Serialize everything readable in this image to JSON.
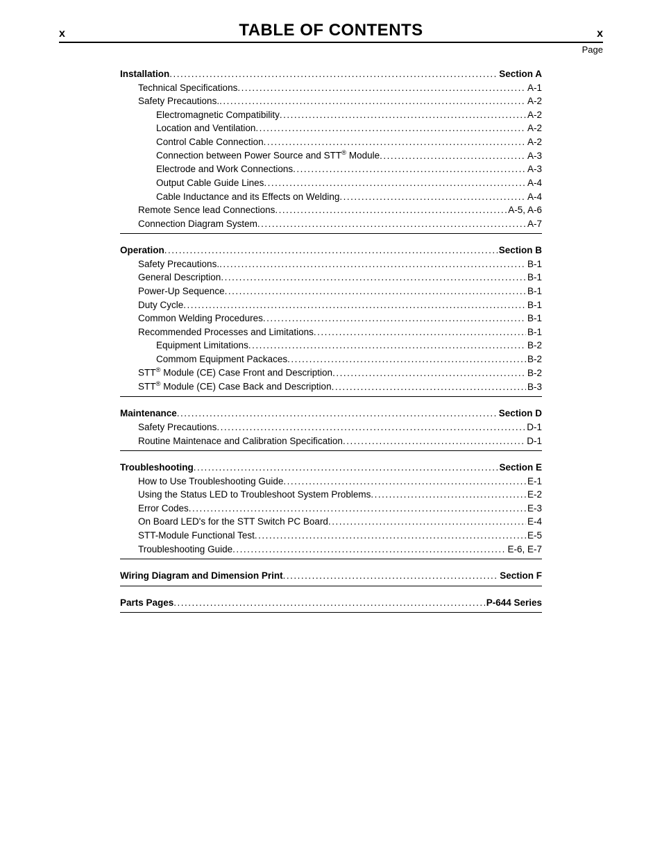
{
  "header": {
    "left_marker": "x",
    "right_marker": "x",
    "title": "TABLE OF CONTENTS",
    "page_label": "Page"
  },
  "sections": [
    {
      "heading": {
        "label": "Installation",
        "page": "Section A",
        "bold": true,
        "indent": 0
      },
      "items": [
        {
          "label": "Technical Specifications",
          "page": "A-1",
          "indent": 1
        },
        {
          "label": "Safety Precautions.",
          "page": "A-2",
          "indent": 1
        },
        {
          "label": "Electromagnetic Compatibility",
          "page": "A-2",
          "indent": 2
        },
        {
          "label": "Location and Ventilation",
          "page": "A-2",
          "indent": 2
        },
        {
          "label": "Control Cable Connection",
          "page": "A-2",
          "indent": 2
        },
        {
          "label_html": "Connection between Power Source and STT<sup>®</sup> Module",
          "page": "A-3",
          "indent": 2
        },
        {
          "label": "Electrode and Work Connections",
          "page": "A-3",
          "indent": 2
        },
        {
          "label": "Output Cable Guide Lines",
          "page": "A-4",
          "indent": 2
        },
        {
          "label": "Cable Inductance and its Effects on Welding",
          "page": "A-4",
          "indent": 2
        },
        {
          "label": "Remote Sence lead Connections",
          "page": "A-5, A-6",
          "indent": 1
        },
        {
          "label": "Connection Diagram System",
          "page": "A-7",
          "indent": 1
        }
      ]
    },
    {
      "heading": {
        "label": "Operation",
        "page": "Section B",
        "bold": true,
        "indent": 0
      },
      "items": [
        {
          "label": "Safety Precautions.",
          "page": "B-1",
          "indent": 1
        },
        {
          "label": "General Description",
          "page": "B-1",
          "indent": 1
        },
        {
          "label": "Power-Up Sequence",
          "page": "B-1",
          "indent": 1
        },
        {
          "label": "Duty Cycle",
          "page": "B-1",
          "indent": 1
        },
        {
          "label": "Common Welding Procedures",
          "page": "B-1",
          "indent": 1
        },
        {
          "label": "Recommended Processes and Limitations",
          "page": "B-1",
          "indent": 1
        },
        {
          "label": "Equipment Limitations",
          "page": "B-2",
          "indent": 2
        },
        {
          "label": "Commom Equipment Packaces",
          "page": "B-2",
          "indent": 2
        },
        {
          "label_html": "STT<sup>®</sup> Module (CE) Case Front and Description",
          "page": "B-2",
          "indent": 1
        },
        {
          "label_html": "STT<sup>®</sup> Module (CE) Case Back and Description",
          "page": "B-3",
          "indent": 1
        }
      ]
    },
    {
      "heading": {
        "label": "Maintenance",
        "page": "Section D",
        "bold": true,
        "indent": 0
      },
      "items": [
        {
          "label": "Safety Precautions",
          "page": "D-1",
          "indent": 1
        },
        {
          "label": "Routine Maintenace and Calibration Specification",
          "page": "D-1",
          "indent": 1
        }
      ]
    },
    {
      "heading": {
        "label": "Troubleshooting",
        "page": "Section E",
        "bold": true,
        "indent": 0
      },
      "items": [
        {
          "label": "How to Use Troubleshooting Guide",
          "page": "E-1",
          "indent": 1
        },
        {
          "label": "Using the Status LED to Troubleshoot System Problems",
          "page": "E-2",
          "indent": 1
        },
        {
          "label": "Error Codes",
          "page": "E-3",
          "indent": 1
        },
        {
          "label": "On Board LED's for the STT Switch PC Board",
          "page": "E-4",
          "indent": 1
        },
        {
          "label": "STT-Module Functional Test",
          "page": "E-5",
          "indent": 1
        },
        {
          "label": "Troubleshooting Guide",
          "page": "E-6, E-7",
          "indent": 1
        }
      ]
    },
    {
      "heading": {
        "label": "Wiring Diagram and Dimension Print",
        "page": "Section F",
        "bold": true,
        "indent": 0
      },
      "items": []
    },
    {
      "heading": {
        "label": "Parts Pages",
        "page": "P-644 Series",
        "bold": true,
        "indent": 0
      },
      "items": []
    }
  ]
}
